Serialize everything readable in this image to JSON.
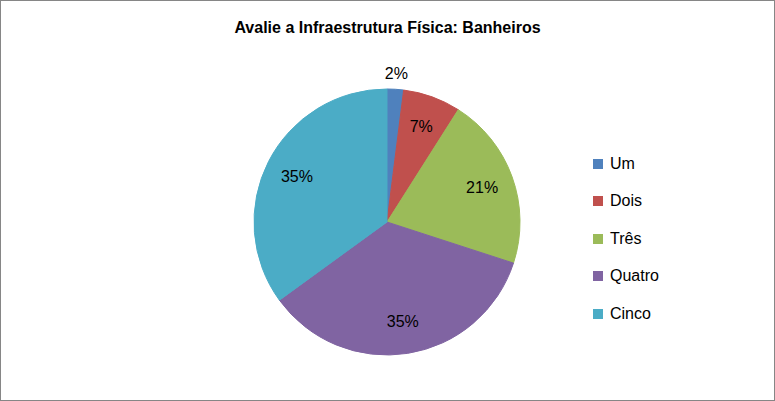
{
  "chart_data": {
    "type": "pie",
    "title": "Avalie a Infraestrutura Física: Banheiros",
    "categories": [
      "Um",
      "Dois",
      "Três",
      "Quatro",
      "Cinco"
    ],
    "values": [
      2,
      7,
      21,
      35,
      35
    ],
    "value_labels": [
      "2%",
      "7%",
      "21%",
      "35%",
      "35%"
    ],
    "colors": [
      "#4f81bd",
      "#c0504d",
      "#9bbb59",
      "#8064a2",
      "#4bacc6"
    ],
    "data_labels": true,
    "legend": "right"
  }
}
